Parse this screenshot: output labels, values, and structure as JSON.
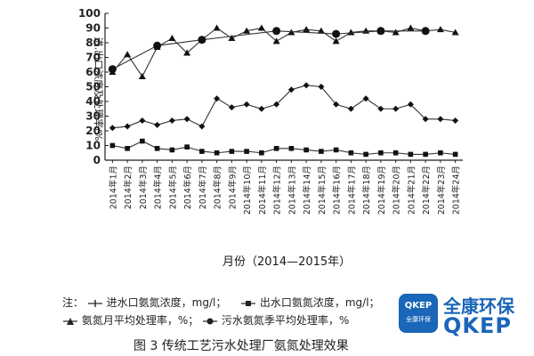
{
  "chart_data": {
    "type": "line",
    "ylabel": "进.出口浓度及处理率/%",
    "xlabel": "月份（2014—2015年）",
    "ylim": [
      0,
      100
    ],
    "yticks": [
      0,
      10,
      20,
      30,
      40,
      50,
      60,
      70,
      80,
      90,
      100
    ],
    "grid": false,
    "categories": [
      "2014年1月",
      "2014年2月",
      "2014年3月",
      "2014年4月",
      "2014年5月",
      "2014年6月",
      "2014年7月",
      "2014年8月",
      "2014年9月",
      "2014年10月",
      "2014年11月",
      "2014年12月",
      "2014年13月",
      "2014年14月",
      "2014年15月",
      "2014年16月",
      "2014年17月",
      "2014年18月",
      "2014年19月",
      "2014年20月",
      "2014年21月",
      "2014年22月",
      "2014年23月",
      "2014年24月"
    ],
    "series": [
      {
        "name": "进水口氨氮浓度，mg/L",
        "marker": "plus-line",
        "values": [
          22,
          23,
          27,
          24,
          27,
          28,
          23,
          42,
          36,
          38,
          35,
          38,
          48,
          51,
          50,
          38,
          35,
          42,
          35,
          35,
          38,
          28,
          28,
          27
        ]
      },
      {
        "name": "出水口氨氮浓度，mg/L",
        "marker": "square",
        "values": [
          10,
          8,
          13,
          8,
          7,
          9,
          6,
          5,
          6,
          6,
          5,
          8,
          8,
          7,
          6,
          7,
          5,
          4,
          5,
          5,
          4,
          4,
          5,
          4
        ]
      },
      {
        "name": "氨氮月平均处理率，%",
        "marker": "triangle",
        "values": [
          60,
          72,
          57,
          77,
          83,
          73,
          82,
          90,
          83,
          88,
          90,
          81,
          87,
          89,
          88,
          81,
          87,
          88,
          88,
          87,
          90,
          88,
          89,
          87
        ]
      },
      {
        "name": "污水氨氮季平均处理率，%",
        "marker": "dot",
        "values": [
          62,
          null,
          null,
          78,
          null,
          null,
          82,
          null,
          null,
          null,
          null,
          88,
          null,
          null,
          null,
          86,
          null,
          null,
          88,
          null,
          null,
          88,
          null,
          null
        ]
      }
    ]
  },
  "legend": {
    "prefix": "注：",
    "item1": "进水口氨氮浓度，mg/l；",
    "item2": "出水口氨氮浓度，mg/l；",
    "item3": "氨氮月平均处理率，%；",
    "item4": "污水氨氮季平均处理率，%"
  },
  "caption": "图 3  传统工艺污水处理厂氨氮处理效果",
  "logo": {
    "box_top": "QKEP",
    "box_sub": "全康环保",
    "cn": "全康环保",
    "en": "QKEP",
    "brand_color": "#1a66b8"
  }
}
